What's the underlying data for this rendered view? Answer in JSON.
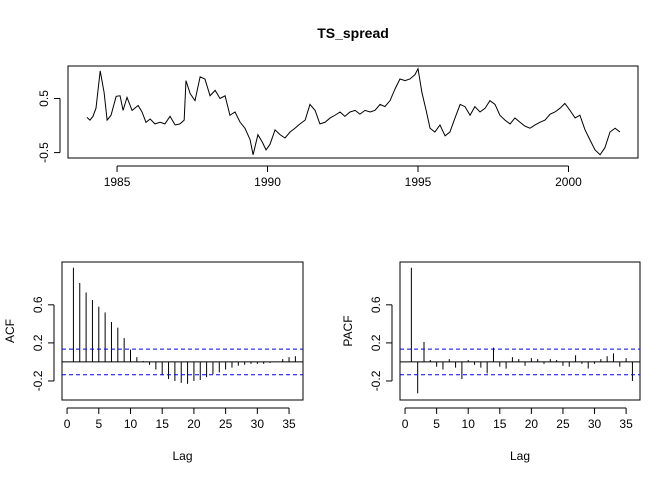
{
  "chart_data": [
    {
      "type": "line",
      "title": "TS_spread",
      "color": "#000000",
      "x": [
        1984.0,
        1984.1,
        1984.2,
        1984.3,
        1984.44,
        1984.57,
        1984.67,
        1984.8,
        1984.97,
        1985.1,
        1985.2,
        1985.33,
        1985.5,
        1985.7,
        1985.83,
        1985.96,
        1986.1,
        1986.26,
        1986.43,
        1986.59,
        1986.76,
        1986.93,
        1987.09,
        1987.23,
        1987.29,
        1987.43,
        1987.59,
        1987.76,
        1987.92,
        1988.09,
        1988.26,
        1988.42,
        1988.59,
        1988.75,
        1988.92,
        1989.09,
        1989.25,
        1989.42,
        1989.52,
        1989.68,
        1989.82,
        1989.95,
        1990.08,
        1990.25,
        1990.42,
        1990.58,
        1990.75,
        1990.91,
        1991.08,
        1991.25,
        1991.41,
        1991.58,
        1991.74,
        1991.91,
        1992.08,
        1992.24,
        1992.41,
        1992.57,
        1992.74,
        1992.91,
        1993.07,
        1993.24,
        1993.41,
        1993.57,
        1993.74,
        1993.9,
        1994.07,
        1994.24,
        1994.4,
        1994.57,
        1994.73,
        1994.9,
        1995.0,
        1995.13,
        1995.27,
        1995.4,
        1995.56,
        1995.73,
        1995.9,
        1996.06,
        1996.23,
        1996.4,
        1996.56,
        1996.73,
        1996.89,
        1997.06,
        1997.23,
        1997.39,
        1997.56,
        1997.72,
        1997.89,
        1998.06,
        1998.22,
        1998.39,
        1998.55,
        1998.72,
        1998.89,
        1999.05,
        1999.22,
        1999.39,
        1999.55,
        1999.72,
        1999.88,
        2000.05,
        2000.22,
        2000.38,
        2000.55,
        2000.71,
        2000.88,
        2001.05,
        2001.21,
        2001.38,
        2001.55,
        2001.71
      ],
      "values": [
        0.15,
        0.1,
        0.17,
        0.32,
        1.01,
        0.61,
        0.1,
        0.19,
        0.54,
        0.55,
        0.28,
        0.52,
        0.28,
        0.37,
        0.25,
        0.06,
        0.12,
        0.03,
        0.06,
        0.03,
        0.17,
        0.01,
        0.03,
        0.1,
        0.83,
        0.59,
        0.46,
        0.9,
        0.86,
        0.55,
        0.65,
        0.5,
        0.55,
        0.19,
        0.25,
        0.06,
        -0.05,
        -0.26,
        -0.54,
        -0.17,
        -0.3,
        -0.45,
        -0.35,
        -0.08,
        -0.17,
        -0.23,
        -0.12,
        -0.05,
        0.03,
        0.1,
        0.39,
        0.28,
        0.03,
        0.06,
        0.14,
        0.19,
        0.25,
        0.17,
        0.25,
        0.28,
        0.21,
        0.28,
        0.25,
        0.28,
        0.39,
        0.35,
        0.46,
        0.68,
        0.86,
        0.83,
        0.86,
        0.94,
        1.05,
        0.61,
        0.28,
        -0.05,
        -0.12,
        0.01,
        -0.19,
        -0.12,
        0.14,
        0.39,
        0.35,
        0.19,
        0.35,
        0.25,
        0.32,
        0.46,
        0.39,
        0.19,
        0.1,
        0.03,
        0.14,
        0.06,
        -0.01,
        -0.05,
        0.01,
        0.06,
        0.1,
        0.21,
        0.25,
        0.32,
        0.41,
        0.28,
        0.14,
        0.19,
        -0.08,
        -0.26,
        -0.45,
        -0.54,
        -0.41,
        -0.12,
        -0.05,
        -0.12
      ],
      "xlim": [
        1983.37,
        2002.31
      ],
      "ylim": [
        -0.6,
        1.1
      ],
      "xticks": [
        1985,
        1990,
        1995,
        2000
      ],
      "yticks": [
        -0.5,
        0.5
      ]
    },
    {
      "type": "bar",
      "xlabel": "Lag",
      "ylabel": "ACF",
      "color": "#000000",
      "x": [
        1,
        2,
        3,
        4,
        5,
        6,
        7,
        8,
        9,
        10,
        11,
        12,
        13,
        14,
        15,
        16,
        17,
        18,
        19,
        20,
        21,
        22,
        23,
        24,
        25,
        26,
        27,
        28,
        29,
        30,
        31,
        32,
        33,
        34,
        35,
        36
      ],
      "values": [
        0.99,
        0.83,
        0.73,
        0.65,
        0.58,
        0.52,
        0.42,
        0.36,
        0.25,
        0.13,
        0.05,
        0.01,
        -0.03,
        -0.08,
        -0.14,
        -0.18,
        -0.2,
        -0.22,
        -0.23,
        -0.2,
        -0.19,
        -0.16,
        -0.13,
        -0.11,
        -0.08,
        -0.06,
        -0.04,
        -0.03,
        -0.02,
        -0.02,
        -0.02,
        -0.01,
        0.0,
        0.03,
        0.05,
        0.06
      ],
      "reference_lines": {
        "values": [
          0.135,
          -0.135
        ],
        "color": "#0000ff"
      },
      "xlim": [
        -0.8,
        37.2
      ],
      "ylim": [
        -0.4,
        1.05
      ],
      "xticks": [
        0,
        5,
        10,
        15,
        20,
        25,
        30,
        35
      ],
      "yticks": [
        -0.2,
        0.2,
        0.6
      ]
    },
    {
      "type": "bar",
      "xlabel": "Lag",
      "ylabel": "PACF",
      "color": "#000000",
      "x": [
        1,
        2,
        3,
        4,
        5,
        6,
        7,
        8,
        9,
        10,
        11,
        12,
        13,
        14,
        15,
        16,
        17,
        18,
        19,
        20,
        21,
        22,
        23,
        24,
        25,
        26,
        27,
        28,
        29,
        30,
        31,
        32,
        33,
        34,
        35,
        36
      ],
      "values": [
        0.99,
        -0.33,
        0.21,
        0.02,
        -0.05,
        -0.08,
        0.03,
        -0.06,
        -0.18,
        0.02,
        -0.03,
        -0.06,
        -0.12,
        0.15,
        -0.05,
        -0.07,
        0.05,
        0.03,
        -0.04,
        0.04,
        0.03,
        -0.02,
        0.03,
        0.02,
        -0.04,
        -0.05,
        0.07,
        -0.02,
        -0.07,
        -0.02,
        0.03,
        0.06,
        0.09,
        -0.05,
        0.04,
        -0.2
      ],
      "reference_lines": {
        "values": [
          0.135,
          -0.135
        ],
        "color": "#0000ff"
      },
      "xlim": [
        -0.8,
        37.2
      ],
      "ylim": [
        -0.4,
        1.05
      ],
      "xticks": [
        0,
        5,
        10,
        15,
        20,
        25,
        30,
        35
      ],
      "yticks": [
        -0.2,
        0.2,
        0.6
      ]
    }
  ]
}
